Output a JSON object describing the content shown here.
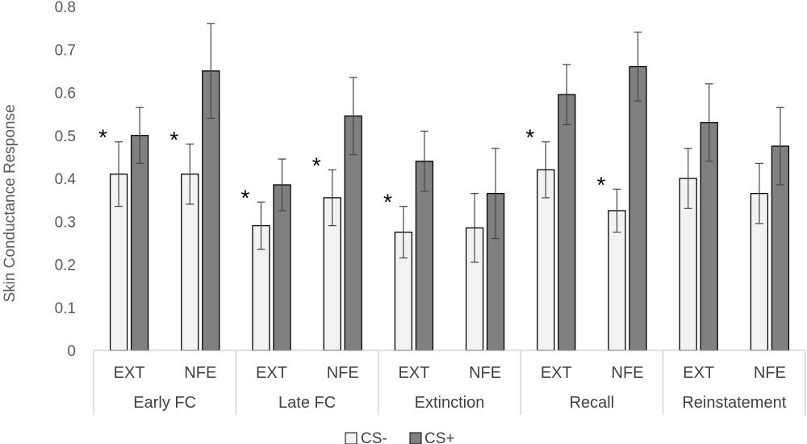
{
  "chart_data": {
    "type": "bar",
    "title": "",
    "xlabel": "",
    "ylabel": "Skin Conductance Response",
    "ylim": [
      0,
      0.8
    ],
    "yticks": [
      "0",
      "0.1",
      "0.2",
      "0.3",
      "0.4",
      "0.5",
      "0.6",
      "0.7",
      "0.8"
    ],
    "grid": false,
    "legend_position": "bottom",
    "phases": [
      "Early FC",
      "Late FC",
      "Extinction",
      "Recall",
      "Reinstatement"
    ],
    "groups": [
      "EXT",
      "NFE"
    ],
    "categories": [
      "Early FC EXT",
      "Early FC NFE",
      "Late FC EXT",
      "Late FC NFE",
      "Extinction EXT",
      "Extinction NFE",
      "Recall EXT",
      "Recall NFE",
      "Reinstatement EXT",
      "Reinstatement NFE"
    ],
    "series": [
      {
        "name": "CS-",
        "color": "#f2f2f2",
        "values": [
          0.41,
          0.41,
          0.29,
          0.355,
          0.275,
          0.285,
          0.42,
          0.325,
          0.4,
          0.365
        ],
        "errors": [
          0.075,
          0.07,
          0.055,
          0.065,
          0.06,
          0.08,
          0.065,
          0.05,
          0.07,
          0.07
        ]
      },
      {
        "name": "CS+",
        "color": "#808080",
        "values": [
          0.5,
          0.65,
          0.385,
          0.545,
          0.44,
          0.365,
          0.595,
          0.66,
          0.53,
          0.475
        ],
        "errors": [
          0.065,
          0.11,
          0.06,
          0.09,
          0.07,
          0.105,
          0.07,
          0.08,
          0.09,
          0.09
        ]
      }
    ],
    "significance_marker": "*",
    "significant": [
      true,
      true,
      true,
      true,
      true,
      false,
      true,
      true,
      false,
      false
    ]
  }
}
